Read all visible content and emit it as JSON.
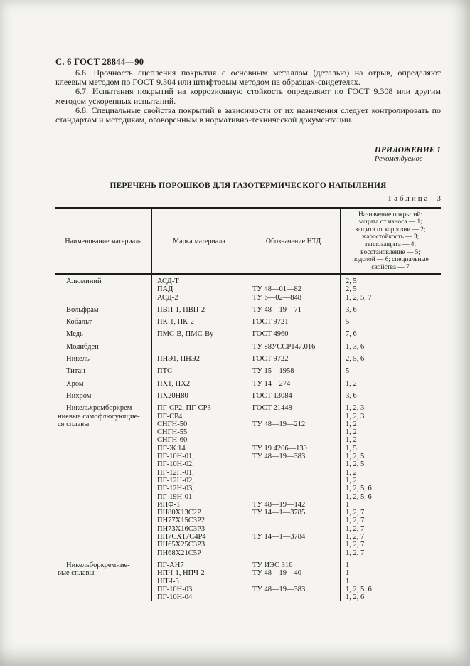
{
  "doc": {
    "header": "С. 6 ГОСТ 28844—90",
    "paragraphs": [
      {
        "text": "6.6. Прочность сцепления покрытия с основным металлом (деталью) на отрыв, определяют клеевым методом по ГОСТ 9.304 или штифтовым методом на образцах-свидетелях."
      },
      {
        "text": "6.7. Испытания покрытий на коррозионную стойкость определяют по ГОСТ 9.308 или другим методом ускоренных испытаний."
      },
      {
        "text": "6.8. Специальные свойства покрытий в зависимости от их назначения следует контролировать по стандартам и методикам, оговоренным в нормативно-технической документации."
      }
    ],
    "appendix": {
      "title": "ПРИЛОЖЕНИЕ 1",
      "subtitle": "Рекомендуемое"
    },
    "table_title": "ПЕРЕЧЕНЬ ПОРОШКОВ ДЛЯ ГАЗОТЕРМИЧЕСКОГО НАПЫЛЕНИЯ",
    "table_caption_word": "Таблица",
    "table_caption_number": "3"
  },
  "table": {
    "columns": [
      "Наименование материала",
      "Марка материала",
      "Обозначение НТД",
      "Назначение покрытий"
    ],
    "purpose_header_lines": [
      "Назначение покрытий:",
      "защита от износа — 1;",
      "защита от коррозии — 2;",
      "жаростойкость — 3;",
      "теплозащита — 4;",
      "восстановление — 5;",
      "подслой — 6; специальные",
      "свойства — 7"
    ],
    "groups": [
      {
        "name": [
          "Алюминий"
        ],
        "rows": [
          [
            "АСД-Т",
            "",
            "2, 5"
          ],
          [
            "ПАД",
            "ТУ 48—01—82",
            "2, 5"
          ],
          [
            "АСД-2",
            "ТУ 6—02—848",
            "1, 2, 5, 7"
          ]
        ]
      },
      {
        "name": [
          "Вольфрам"
        ],
        "rows": [
          [
            "ПВП-1, ПВП-2",
            "ТУ 48—19—71",
            "3, 6"
          ]
        ]
      },
      {
        "name": [
          "Кобальт"
        ],
        "rows": [
          [
            "ПК-1, ПК-2",
            "ГОСТ 9721",
            "5"
          ]
        ]
      },
      {
        "name": [
          "Медь"
        ],
        "rows": [
          [
            "ПМС-В, ПМС-Ву",
            "ГОСТ 4960",
            "7, 6"
          ]
        ]
      },
      {
        "name": [
          "Молибден"
        ],
        "rows": [
          [
            "",
            "ТУ 88УССР147.016",
            "1, 3, 6"
          ]
        ]
      },
      {
        "name": [
          "Никель"
        ],
        "rows": [
          [
            "ПНЭ1, ПНЭ2",
            "ГОСТ 9722",
            "2, 5, 6"
          ]
        ]
      },
      {
        "name": [
          "Титан"
        ],
        "rows": [
          [
            "ПТС",
            "ТУ 15—1958",
            "5"
          ]
        ]
      },
      {
        "name": [
          "Хром"
        ],
        "rows": [
          [
            "ПХ1, ПХ2",
            "ТУ 14—274",
            "1, 2"
          ]
        ]
      },
      {
        "name": [
          "Нихром"
        ],
        "rows": [
          [
            "ПХ20Н80",
            "ГОСТ 13084",
            "3, 6"
          ]
        ]
      },
      {
        "name": [
          "Никельхромборкрем-",
          "ниевые самофлюсующие-",
          "ся сплавы"
        ],
        "rows": [
          [
            "ПГ-СР2, ПГ-СР3",
            "ГОСТ 21448",
            "1, 2, 3"
          ],
          [
            "ПГ-СР4",
            "",
            "1, 2, 3"
          ],
          [
            "СНГН-50",
            "ТУ 48—19—212",
            "1, 2"
          ],
          [
            "СНГН-55",
            "",
            "1, 2"
          ],
          [
            "СНГН-60",
            "",
            "1, 2"
          ],
          [
            "ПГ-Ж 14",
            "ТУ 19 4206—139",
            "1, 5"
          ],
          [
            "ПГ-10Н-01,",
            "ТУ 48—19—383",
            "1, 2, 5"
          ],
          [
            "ПГ-10Н-02,",
            "",
            "1, 2, 5"
          ],
          [
            "ПГ-12Н-01,",
            "",
            "1, 2"
          ],
          [
            "ПГ-12Н-02,",
            "",
            "1, 2"
          ],
          [
            "ПГ-12Н-03,",
            "",
            "1, 2, 5, 6"
          ],
          [
            "ПГ-19Н-01",
            "",
            "1, 2, 5, 6"
          ],
          [
            "ИПФ-1",
            "ТУ 48—19—142",
            "1"
          ],
          [
            "ПН80Х13С2Р",
            "ТУ 14—1—3785",
            "1, 2, 7"
          ],
          [
            "ПН77Х15С3Р2",
            "",
            "1, 2, 7"
          ],
          [
            "ПН73Х16С3Р3",
            "",
            "1, 2, 7"
          ],
          [
            "ПН7СХ17С4Р4",
            "ТУ 14—1—3784",
            "1, 2, 7"
          ],
          [
            "ПН65Х25С3Р3",
            "",
            "1, 2, 7"
          ],
          [
            "ПН68Х21С5Р",
            "",
            "1, 2, 7"
          ]
        ]
      },
      {
        "name": [
          "Никельборкремние-",
          "вые сплавы"
        ],
        "rows": [
          [
            "ПГ-АН7",
            "ТУ ИЭС 316",
            "1"
          ],
          [
            "НПЧ-1, НПЧ-2",
            "ТУ 48—19—40",
            "1"
          ],
          [
            "НПЧ-3",
            "",
            "1"
          ],
          [
            "ПГ-10Н-03",
            "ТУ 48—19—383",
            "1, 2, 5, 6"
          ],
          [
            "ПГ-10Н-04",
            "",
            "1, 2, 6"
          ]
        ]
      }
    ]
  }
}
